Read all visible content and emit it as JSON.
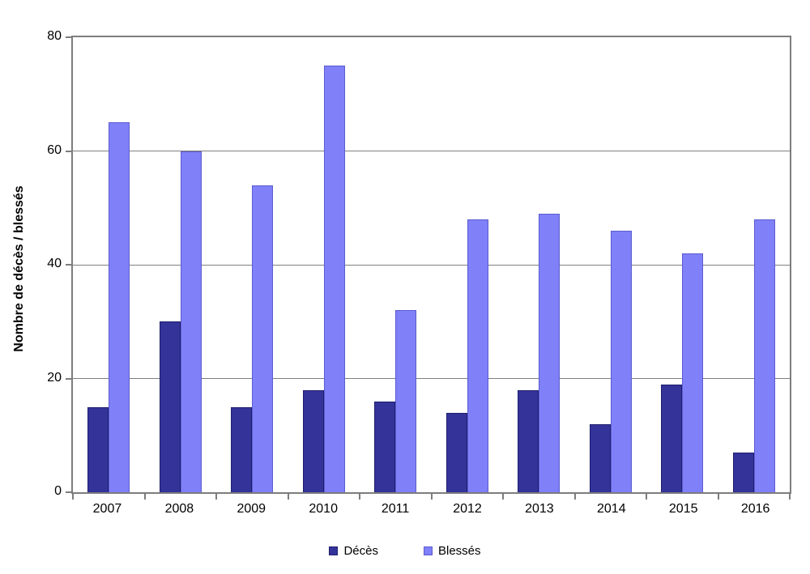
{
  "chart_data": {
    "type": "bar",
    "title": "",
    "categories": [
      "2007",
      "2008",
      "2009",
      "2010",
      "2011",
      "2012",
      "2013",
      "2014",
      "2015",
      "2016"
    ],
    "series": [
      {
        "name": "Décès",
        "color": "#333399",
        "border_color": "#1f1f70",
        "values": [
          15,
          30,
          15,
          18,
          16,
          14,
          18,
          12,
          19,
          7
        ]
      },
      {
        "name": "Blessés",
        "color": "#8080f8",
        "border_color": "#5c5cd0",
        "values": [
          65,
          60,
          54,
          75,
          32,
          48,
          49,
          46,
          42,
          48
        ]
      }
    ],
    "xlabel": "",
    "ylabel": "Nombre de décès / blessés",
    "ylim": [
      0,
      80
    ],
    "yticks": [
      0,
      20,
      40,
      60,
      80
    ],
    "grid": true,
    "legend_position": "bottom",
    "plot_border_color": "#7d7d7d",
    "gridline_color": "#808080",
    "background_color": "#ffffff"
  }
}
